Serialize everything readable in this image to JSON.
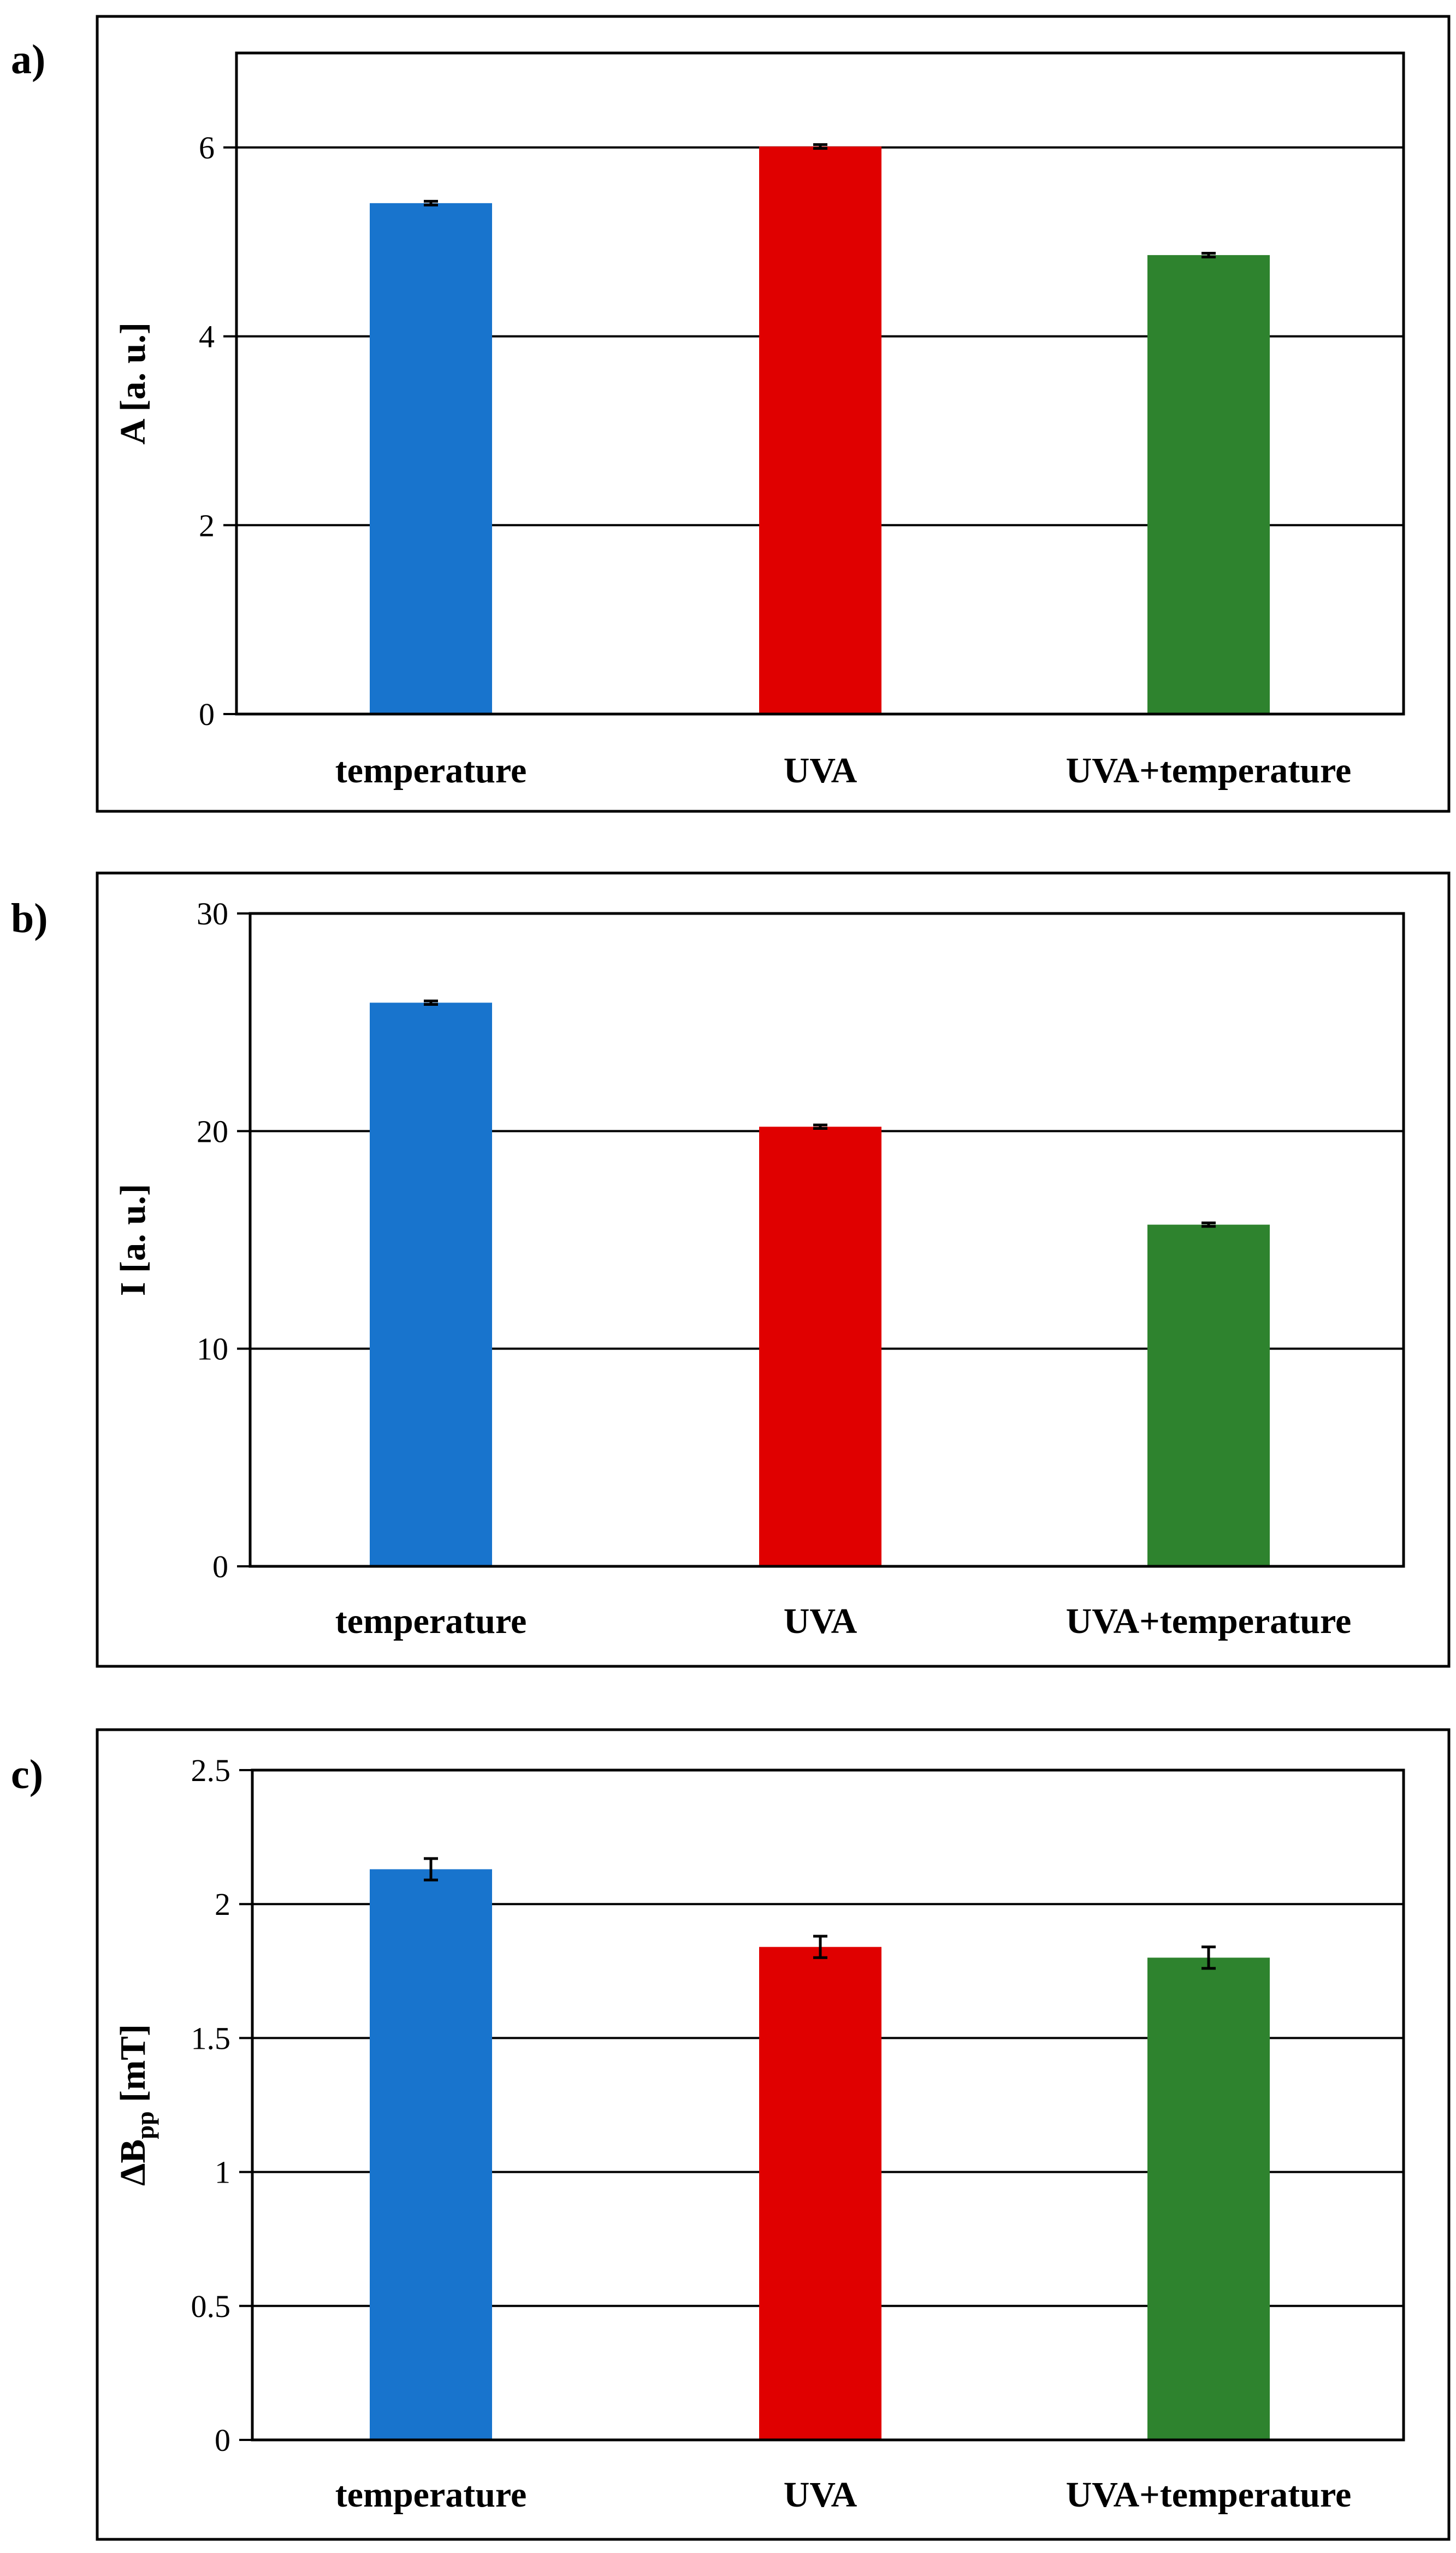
{
  "colors": {
    "temperature": "#1874CD",
    "UVA": "#E00000",
    "UVA+temperature": "#2E832E",
    "frame": "#000000"
  },
  "chart_data": [
    {
      "panel": "a)",
      "type": "bar",
      "categories": [
        "temperature",
        "UVA",
        "UVA+temperature"
      ],
      "values": [
        5.41,
        6.01,
        4.86
      ],
      "errors": [
        0.02,
        0.02,
        0.02
      ],
      "ylabel": "A [a. u.]",
      "ylim": [
        0,
        7
      ],
      "yticks": [
        0,
        2,
        4,
        6
      ],
      "ytick_labels": [
        "0",
        "2",
        "4",
        "6"
      ],
      "gridlines": [
        2,
        4,
        6
      ]
    },
    {
      "panel": "b)",
      "type": "bar",
      "categories": [
        "temperature",
        "UVA",
        "UVA+temperature"
      ],
      "values": [
        25.9,
        20.2,
        15.7
      ],
      "errors": [
        0.08,
        0.08,
        0.08
      ],
      "ylabel": "I [a. u.]",
      "ylim": [
        0,
        30
      ],
      "yticks": [
        0,
        10,
        20,
        30
      ],
      "ytick_labels": [
        "0",
        "10",
        "20",
        "30"
      ],
      "gridlines": [
        10,
        20
      ]
    },
    {
      "panel": "c)",
      "type": "bar",
      "categories": [
        "temperature",
        "UVA",
        "UVA+temperature"
      ],
      "values": [
        2.13,
        1.84,
        1.8
      ],
      "errors": [
        0.04,
        0.04,
        0.04
      ],
      "ylabel": "ΔB",
      "ylabel_sub": "pp",
      "ylabel_unit": "[mT]",
      "ylim": [
        0,
        2.5
      ],
      "yticks": [
        0,
        0.5,
        1,
        1.5,
        2,
        2.5
      ],
      "ytick_labels": [
        "0",
        "0.5",
        "1",
        "1.5",
        "2",
        "2.5"
      ],
      "gridlines": [
        0.5,
        1,
        1.5,
        2
      ]
    }
  ]
}
